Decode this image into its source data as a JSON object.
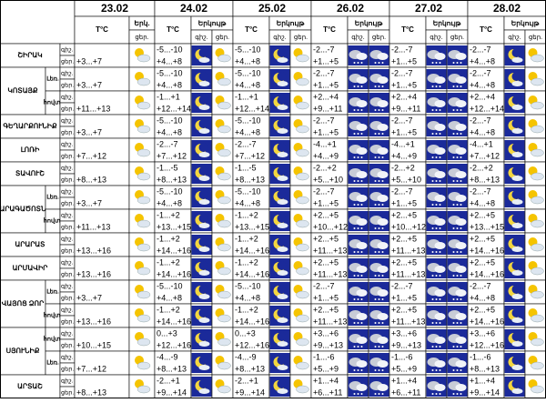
{
  "header": {
    "dates": [
      "23.02",
      "24.02",
      "25.02",
      "26.02",
      "27.02",
      "28.02"
    ],
    "temp_label": "T°C",
    "sky_short": "Երկ.",
    "sky": "Երկույթ",
    "night": "գիշ.",
    "day": "ցեր."
  },
  "regions": [
    {
      "name": "ՇԻՐԱԿ",
      "rows": [
        {
          "d23": "+3...+7",
          "temps": [
            [
              "-5...-10",
              "+4...+8"
            ],
            [
              "-5...-10",
              "+4...+8"
            ],
            [
              "-2...-7",
              "+1...+5"
            ],
            [
              "-2...-7",
              "+1...+5"
            ],
            [
              "-2...-7",
              "+4...+8"
            ]
          ]
        }
      ]
    },
    {
      "name": "ԿՈՏԱՅՔ",
      "rows": [
        {
          "sub": "Լեռ.",
          "d23": "+3...+7",
          "temps": [
            [
              "-5...-10",
              "+4...+8"
            ],
            [
              "-5...-10",
              "+4...+8"
            ],
            [
              "-2...-7",
              "+1...+5"
            ],
            [
              "-2...-7",
              "+1...+5"
            ],
            [
              "-2...-7",
              "+4...+8"
            ]
          ]
        },
        {
          "sub": "հովտ.",
          "d23": "+11...+13",
          "temps": [
            [
              "-1...+1",
              "+12...+14"
            ],
            [
              "-1...+1",
              "+12...+14"
            ],
            [
              "+2...+4",
              "+9...+11"
            ],
            [
              "+2...+4",
              "+9...+11"
            ],
            [
              "+2...+4",
              "+12...+14"
            ]
          ]
        }
      ]
    },
    {
      "name": "ԳԵՂԱՐՔՈՒՆԻՔ",
      "rows": [
        {
          "d23": "+3...+7",
          "temps": [
            [
              "-5...-10",
              "+4...+8"
            ],
            [
              "-5...-10",
              "+4...+8"
            ],
            [
              "-2...-7",
              "+1...+5"
            ],
            [
              "-2...-7",
              "+1...+5"
            ],
            [
              "-2...-7",
              "+4...+8"
            ]
          ]
        }
      ]
    },
    {
      "name": "ԼՈՌԻ",
      "rows": [
        {
          "d23": "+7...+12",
          "temps": [
            [
              "-2...-7",
              "+7...+12"
            ],
            [
              "-2...-7",
              "+7...+12"
            ],
            [
              "-4...+1",
              "+4...+9"
            ],
            [
              "-4...+1",
              "+4...+9"
            ],
            [
              "-4...+1",
              "+7...+12"
            ]
          ]
        }
      ]
    },
    {
      "name": "ՏԱՎՈՒՇ",
      "rows": [
        {
          "d23": "+8...+13",
          "temps": [
            [
              "-1...-5",
              "+8...+13"
            ],
            [
              "-1...-5",
              "+8...+13"
            ],
            [
              "-2...+2",
              "+5...+10"
            ],
            [
              "-2...+2",
              "+5...+10"
            ],
            [
              "-2...+2",
              "+8...+13"
            ]
          ]
        }
      ]
    },
    {
      "name": "ԱՐԱԳԱԾՈՏՆ",
      "rows": [
        {
          "sub": "Լեռ.",
          "d23": "+3...+7",
          "temps": [
            [
              "-5...-10",
              "+4...+8"
            ],
            [
              "-5...-10",
              "+4...+8"
            ],
            [
              "-2...-7",
              "+1...+5"
            ],
            [
              "-2...-7",
              "+1...+5"
            ],
            [
              "-2...-7",
              "+4...+8"
            ]
          ]
        },
        {
          "sub": "հովտ.",
          "d23": "+11...+13",
          "temps": [
            [
              "-1...+2",
              "+13...+15"
            ],
            [
              "-1...+2",
              "+13...+15"
            ],
            [
              "+2...+5",
              "+10...+12"
            ],
            [
              "+2...+5",
              "+10...+12"
            ],
            [
              "+2...+5",
              "+13...+15"
            ]
          ]
        }
      ]
    },
    {
      "name": "ԱՐԱՐԱՏ",
      "rows": [
        {
          "d23": "+13...+16",
          "temps": [
            [
              "-1...+2",
              "+14...+16"
            ],
            [
              "-1...+2",
              "+14...+16"
            ],
            [
              "+2...+5",
              "+11...+13"
            ],
            [
              "+2...+5",
              "+11...+13"
            ],
            [
              "+2...+5",
              "+14...+16"
            ]
          ]
        }
      ]
    },
    {
      "name": "ԱՐՄԱՎԻՐ",
      "rows": [
        {
          "d23": "+13...+16",
          "temps": [
            [
              "-1...+2",
              "+14...+16"
            ],
            [
              "-1...+2",
              "+14...+16"
            ],
            [
              "+2...+5",
              "+11...+13"
            ],
            [
              "+2...+5",
              "+11...+13"
            ],
            [
              "+2...+5",
              "+14...+16"
            ]
          ]
        }
      ]
    },
    {
      "name": "ՎԱՅՈՑ ՁՈՐ",
      "rows": [
        {
          "sub": "Լեռ.",
          "d23": "+3...+7",
          "temps": [
            [
              "-5...-10",
              "+4...+8"
            ],
            [
              "-5...-10",
              "+4...+8"
            ],
            [
              "-2...-7",
              "+1...+5"
            ],
            [
              "-2...-7",
              "+1...+5"
            ],
            [
              "-2...-7",
              "+4...+8"
            ]
          ]
        },
        {
          "sub": "հովտ.",
          "d23": "+13...+16",
          "temps": [
            [
              "-1...+2",
              "+14...+16"
            ],
            [
              "-1...+2",
              "+14...+16"
            ],
            [
              "+2...+5",
              "+11...+13"
            ],
            [
              "+2...+5",
              "+11...+13"
            ],
            [
              "+2...+5",
              "+14...+16"
            ]
          ]
        }
      ]
    },
    {
      "name": "ՍՅՈՒՆԻՔ",
      "rows": [
        {
          "sub": "հովտ.",
          "d23": "+10...+15",
          "temps": [
            [
              "0...+3",
              "+12...+16"
            ],
            [
              "0...+3",
              "+12...+16"
            ],
            [
              "+3...+6",
              "+9...+13"
            ],
            [
              "+3...+6",
              "+9...+13"
            ],
            [
              "+3...+6",
              "+12...+16"
            ]
          ]
        },
        {
          "sub": "Լեռ.",
          "d23": "+7...+12",
          "temps": [
            [
              "-4...-9",
              "+8...+13"
            ],
            [
              "-4...-9",
              "+8...+13"
            ],
            [
              "-1...-6",
              "+5...+9"
            ],
            [
              "-1...-6",
              "+5...+9"
            ],
            [
              "-1...-6",
              "+8...+13"
            ]
          ]
        }
      ]
    },
    {
      "name": "ԱՐՏԱՇ",
      "rows": [
        {
          "d23": "+8...+13",
          "temps": [
            [
              "-2...+1",
              "+9...+14"
            ],
            [
              "-2...+1",
              "+9...+14"
            ],
            [
              "+1...+4",
              "+6...+11"
            ],
            [
              "+1...+4",
              "+6...+11"
            ],
            [
              "+1...+4",
              "+9...+14"
            ]
          ]
        }
      ]
    }
  ]
}
